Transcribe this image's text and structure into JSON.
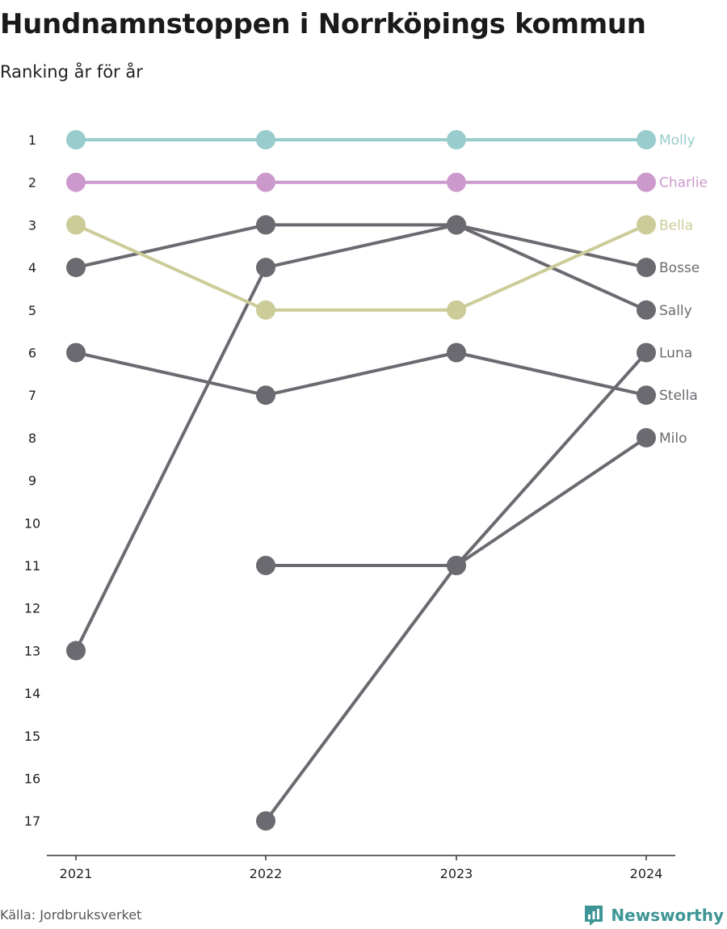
{
  "header": {
    "title": "Hundnamnstoppen i Norrköpings kommun",
    "subtitle": "Ranking år för år"
  },
  "footer": {
    "source": "Källa: Jordbruksverket",
    "brand": "Newsworthy",
    "brand_icon": "newsworthy-logo-icon"
  },
  "colors": {
    "default_series": "#6b6a70",
    "axis": "#333333",
    "tick_label": "#222222"
  },
  "chart_data": {
    "type": "line",
    "x": [
      "2021",
      "2022",
      "2023",
      "2024"
    ],
    "y_inverted": true,
    "ylim": [
      1,
      17
    ],
    "y_ticks": [
      1,
      2,
      3,
      4,
      5,
      6,
      7,
      8,
      9,
      10,
      11,
      12,
      13,
      14,
      15,
      16,
      17
    ],
    "legend": "direct labels at right end",
    "grid": false,
    "series": [
      {
        "name": "Molly",
        "values": [
          1,
          1,
          1,
          1
        ],
        "color": "#99cccc",
        "highlight": true
      },
      {
        "name": "Charlie",
        "values": [
          2,
          2,
          2,
          2
        ],
        "color": "#cc99cc",
        "highlight": true
      },
      {
        "name": "Bella",
        "values": [
          3,
          5,
          5,
          3
        ],
        "color": "#cccc99",
        "highlight": true
      },
      {
        "name": "Bosse",
        "values": [
          4,
          3,
          3,
          4
        ],
        "color": "#6b6a70",
        "highlight": false
      },
      {
        "name": "Sally",
        "values": [
          13,
          4,
          3,
          5
        ],
        "color": "#6b6a70",
        "highlight": false
      },
      {
        "name": "Luna",
        "values": [
          null,
          17,
          11,
          6
        ],
        "color": "#6b6a70",
        "highlight": false
      },
      {
        "name": "Stella",
        "values": [
          6,
          7,
          6,
          7
        ],
        "color": "#6b6a70",
        "highlight": false
      },
      {
        "name": "Milo",
        "values": [
          null,
          11,
          11,
          8
        ],
        "color": "#6b6a70",
        "highlight": false
      }
    ]
  }
}
